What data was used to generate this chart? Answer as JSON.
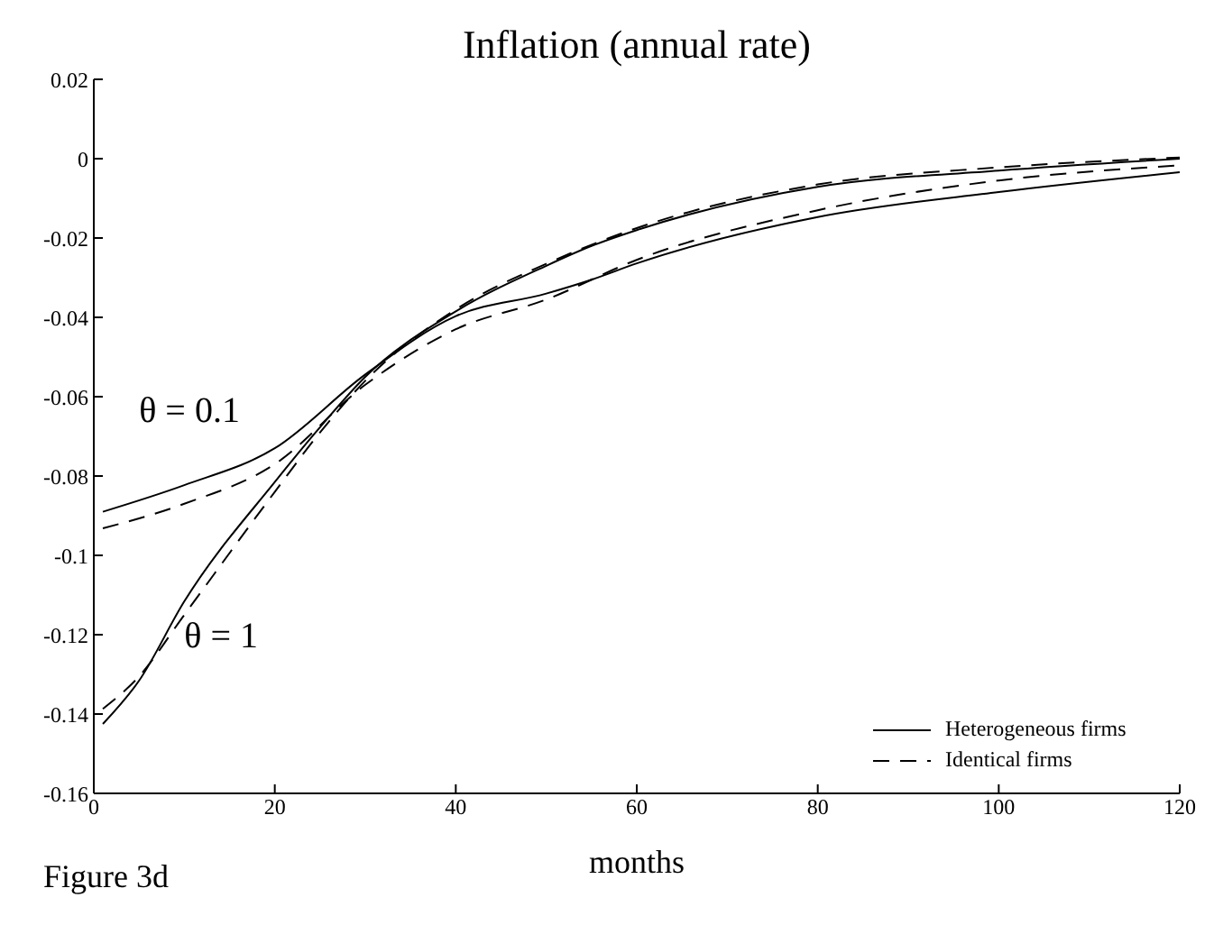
{
  "chart_data": {
    "type": "line",
    "title": "Inflation (annual rate)",
    "xlabel": "months",
    "annotations": [
      "θ = 0.1",
      "θ = 1",
      "Figure 3d"
    ],
    "xlim": [
      0,
      120
    ],
    "xticks": [
      0,
      20,
      40,
      60,
      80,
      100,
      120
    ],
    "ylim": [
      -0.16,
      0.02
    ],
    "yticks": [
      -0.16,
      -0.14,
      -0.12,
      -0.1,
      -0.08,
      -0.06,
      -0.04,
      -0.02,
      0,
      0.02
    ],
    "legend": "bottom right",
    "marker": "none",
    "series": [
      {
        "name": "Heterogeneous firms",
        "color": "#000000",
        "line_style": "solid",
        "x": [
          1,
          10,
          20,
          30,
          40,
          50,
          55,
          60,
          80,
          100,
          120
        ],
        "values": [
          -0.089,
          -0.0823,
          -0.073,
          -0.0544,
          -0.0397,
          -0.034,
          -0.0305,
          -0.0264,
          -0.0147,
          -0.0084,
          -0.0034
        ]
      },
      {
        "name": "Identical firms",
        "color": "#000000",
        "line_style": "dashed",
        "x": [
          1,
          10,
          20,
          30,
          40,
          50,
          60,
          80,
          100,
          120
        ],
        "values": [
          -0.0932,
          -0.087,
          -0.077,
          -0.057,
          -0.043,
          -0.0355,
          -0.0255,
          -0.013,
          -0.0055,
          -0.0017
        ]
      },
      {
        "color": "#000000",
        "line_style": "solid",
        "x": [
          1,
          5,
          10,
          20,
          25,
          30,
          40,
          50,
          55,
          60,
          80,
          100,
          120
        ],
        "values": [
          -0.1425,
          -0.1316,
          -0.1116,
          -0.0815,
          -0.0677,
          -0.055,
          -0.0385,
          -0.027,
          -0.022,
          -0.018,
          -0.0071,
          -0.003,
          0.0
        ]
      },
      {
        "color": "#000000",
        "line_style": "dashed",
        "x": [
          1,
          5,
          10,
          20,
          25,
          30,
          40,
          50,
          60,
          80,
          100,
          120
        ],
        "values": [
          -0.1387,
          -0.1305,
          -0.115,
          -0.084,
          -0.069,
          -0.056,
          -0.038,
          -0.0265,
          -0.0175,
          -0.0065,
          -0.0022,
          0.0003
        ]
      }
    ]
  }
}
